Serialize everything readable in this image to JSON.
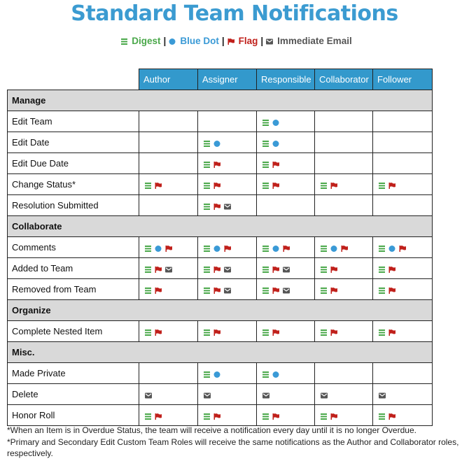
{
  "title": "Standard Team Notifications",
  "legend": [
    {
      "icon": "digest",
      "label": "Digest"
    },
    {
      "icon": "dot",
      "label": "Blue Dot"
    },
    {
      "icon": "flag",
      "label": "Flag"
    },
    {
      "icon": "email",
      "label": "Immediate Email"
    }
  ],
  "colors": {
    "digest": "#4aa84a",
    "dot": "#3a9ad6",
    "flag": "#c0201b",
    "email": "#555555",
    "header": "#3399cc",
    "section": "#d9d9d9"
  },
  "columns": [
    "Author",
    "Assigner",
    "Responsible",
    "Collaborator",
    "Follower"
  ],
  "sections": [
    {
      "name": "Manage",
      "rows": [
        {
          "label": "Edit Team",
          "cells": [
            [],
            [],
            [
              "digest",
              "dot"
            ],
            [],
            []
          ]
        },
        {
          "label": "Edit Date",
          "cells": [
            [],
            [
              "digest",
              "dot"
            ],
            [
              "digest",
              "dot"
            ],
            [],
            []
          ]
        },
        {
          "label": "Edit Due Date",
          "cells": [
            [],
            [
              "digest",
              "flag"
            ],
            [
              "digest",
              "flag"
            ],
            [],
            []
          ]
        },
        {
          "label": "Change Status*",
          "cells": [
            [
              "digest",
              "flag"
            ],
            [
              "digest",
              "flag"
            ],
            [
              "digest",
              "flag"
            ],
            [
              "digest",
              "flag"
            ],
            [
              "digest",
              "flag"
            ]
          ]
        },
        {
          "label": "Resolution Submitted",
          "cells": [
            [],
            [
              "digest",
              "flag",
              "email"
            ],
            [],
            [],
            []
          ]
        }
      ]
    },
    {
      "name": "Collaborate",
      "rows": [
        {
          "label": "Comments",
          "cells": [
            [
              "digest",
              "dot",
              "flag"
            ],
            [
              "digest",
              "dot",
              "flag"
            ],
            [
              "digest",
              "dot",
              "flag"
            ],
            [
              "digest",
              "dot",
              "flag"
            ],
            [
              "digest",
              "dot",
              "flag"
            ]
          ]
        },
        {
          "label": "Added to Team",
          "cells": [
            [
              "digest",
              "flag",
              "email"
            ],
            [
              "digest",
              "flag",
              "email"
            ],
            [
              "digest",
              "flag",
              "email"
            ],
            [
              "digest",
              "flag"
            ],
            [
              "digest",
              "flag"
            ]
          ]
        },
        {
          "label": "Removed from Team",
          "cells": [
            [
              "digest",
              "flag"
            ],
            [
              "digest",
              "flag",
              "email"
            ],
            [
              "digest",
              "flag",
              "email"
            ],
            [
              "digest",
              "flag"
            ],
            [
              "digest",
              "flag"
            ]
          ]
        }
      ]
    },
    {
      "name": "Organize",
      "rows": [
        {
          "label": "Complete Nested Item",
          "cells": [
            [
              "digest",
              "flag"
            ],
            [
              "digest",
              "flag"
            ],
            [
              "digest",
              "flag"
            ],
            [
              "digest",
              "flag"
            ],
            [
              "digest",
              "flag"
            ]
          ]
        }
      ]
    },
    {
      "name": "Misc.",
      "rows": [
        {
          "label": "Made Private",
          "cells": [
            [],
            [
              "digest",
              "dot"
            ],
            [
              "digest",
              "dot"
            ],
            [],
            []
          ]
        },
        {
          "label": "Delete",
          "cells": [
            [
              "email"
            ],
            [
              "email"
            ],
            [
              "email"
            ],
            [
              "email"
            ],
            [
              "email"
            ]
          ]
        },
        {
          "label": "Honor Roll",
          "cells": [
            [
              "digest",
              "flag"
            ],
            [
              "digest",
              "flag"
            ],
            [
              "digest",
              "flag"
            ],
            [
              "digest",
              "flag"
            ],
            [
              "digest",
              "flag"
            ]
          ]
        }
      ]
    }
  ],
  "notes": [
    "*When an Item is in Overdue Status, the team will receive a notification every day until it is no longer Overdue.",
    "*Primary and Secondary Edit Custom Team Roles will receive the same notifications as the Author and Collaborator roles, respectively."
  ]
}
